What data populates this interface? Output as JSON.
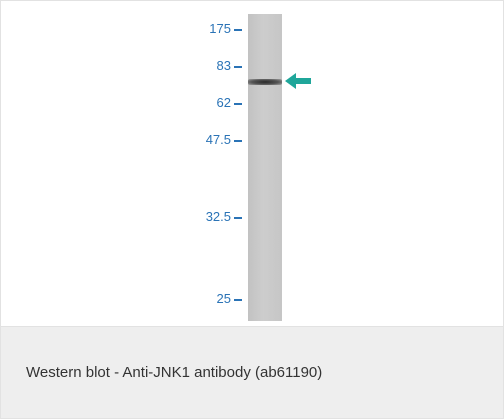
{
  "blot": {
    "markers": [
      "175",
      "83",
      "62",
      "47.5",
      "32.5",
      "25"
    ],
    "arrow_color": "#1fa69a",
    "marker_color": "#2a73b6",
    "arrow_icon": "left-arrow-icon"
  },
  "caption": {
    "text": "Western blot - Anti-JNK1 antibody (ab61190)"
  }
}
